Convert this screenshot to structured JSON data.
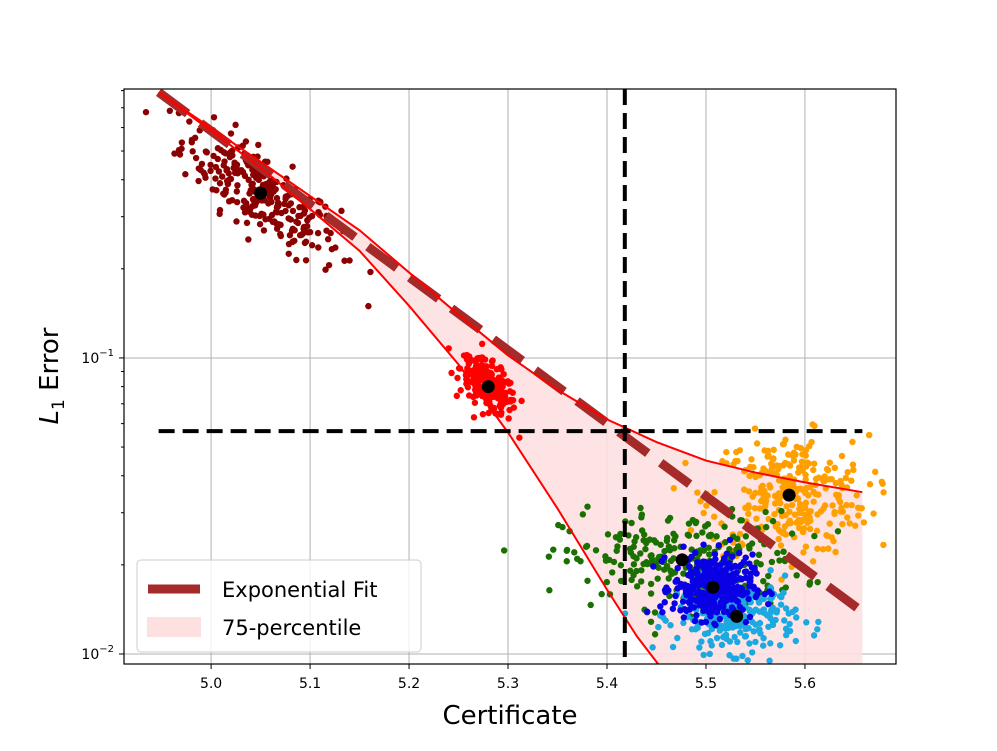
{
  "chart_data": {
    "type": "scatter",
    "xlabel": "Certificate",
    "ylabel_main": "L",
    "ylabel_sub": "1",
    "ylabel_rest": " Error",
    "xlim": [
      4.912,
      5.692
    ],
    "ylim": [
      0.00925,
      0.81
    ],
    "yscale": "log",
    "grid": true,
    "xticks": [
      5.0,
      5.1,
      5.2,
      5.3,
      5.4,
      5.5,
      5.6
    ],
    "xtick_labels": [
      "5.0",
      "5.1",
      "5.2",
      "5.3",
      "5.4",
      "5.5",
      "5.6"
    ],
    "yticks": [
      0.1,
      0.01
    ],
    "ytick_labels": [
      {
        "base": "10",
        "exp": "−1"
      },
      {
        "base": "10",
        "exp": "−2"
      }
    ],
    "threshold_x": 5.418,
    "threshold_y": 0.0566,
    "legend": {
      "placement": "lower-left",
      "entries": [
        {
          "label": "Exponential Fit",
          "color": "#a52a2a",
          "style": "dashed-line"
        },
        {
          "label": "75-percentile",
          "color": "#fde0e0",
          "style": "patch"
        }
      ]
    },
    "fit": {
      "x": [
        4.947,
        5.658
      ],
      "y": [
        0.79,
        0.0139
      ],
      "color": "#a52a2a"
    },
    "band_upper": {
      "x": [
        4.947,
        5.05,
        5.15,
        5.25,
        5.3,
        5.35,
        5.4,
        5.45,
        5.5,
        5.55,
        5.6,
        5.658
      ],
      "y": [
        0.79,
        0.46,
        0.27,
        0.14,
        0.102,
        0.078,
        0.062,
        0.052,
        0.045,
        0.041,
        0.038,
        0.0352
      ]
    },
    "band_lower": {
      "x": [
        4.947,
        5.05,
        5.15,
        5.2,
        5.25,
        5.3,
        5.35,
        5.4,
        5.43,
        5.46
      ],
      "y": [
        0.79,
        0.44,
        0.23,
        0.15,
        0.095,
        0.056,
        0.031,
        0.0165,
        0.0115,
        0.0085
      ]
    },
    "band_color": "#fde0e0",
    "band_line_color": "#ff0000",
    "clusters": [
      {
        "color": "#8b0000",
        "mean": [
          5.05,
          0.36
        ],
        "sd_x": 0.04,
        "sd_log10_y": 0.07,
        "n": 260
      },
      {
        "color": "#ff0000",
        "mean": [
          5.28,
          0.08
        ],
        "sd_x": 0.014,
        "sd_log10_y": 0.04,
        "n": 220
      },
      {
        "color": "#ffa000",
        "mean": [
          5.584,
          0.0344
        ],
        "sd_x": 0.04,
        "sd_log10_y": 0.1,
        "n": 300
      },
      {
        "color": "#1a7000",
        "mean": [
          5.476,
          0.0208
        ],
        "sd_x": 0.06,
        "sd_log10_y": 0.08,
        "n": 250
      },
      {
        "color": "#1ca8e0",
        "mean": [
          5.531,
          0.0134
        ],
        "sd_x": 0.03,
        "sd_log10_y": 0.06,
        "n": 260
      },
      {
        "color": "#0a00e6",
        "mean": [
          5.507,
          0.0168
        ],
        "sd_x": 0.02,
        "sd_log10_y": 0.055,
        "n": 350
      }
    ],
    "means_order": [
      0,
      1,
      2,
      3,
      5,
      4
    ],
    "mean_marker_color": "#000000"
  }
}
